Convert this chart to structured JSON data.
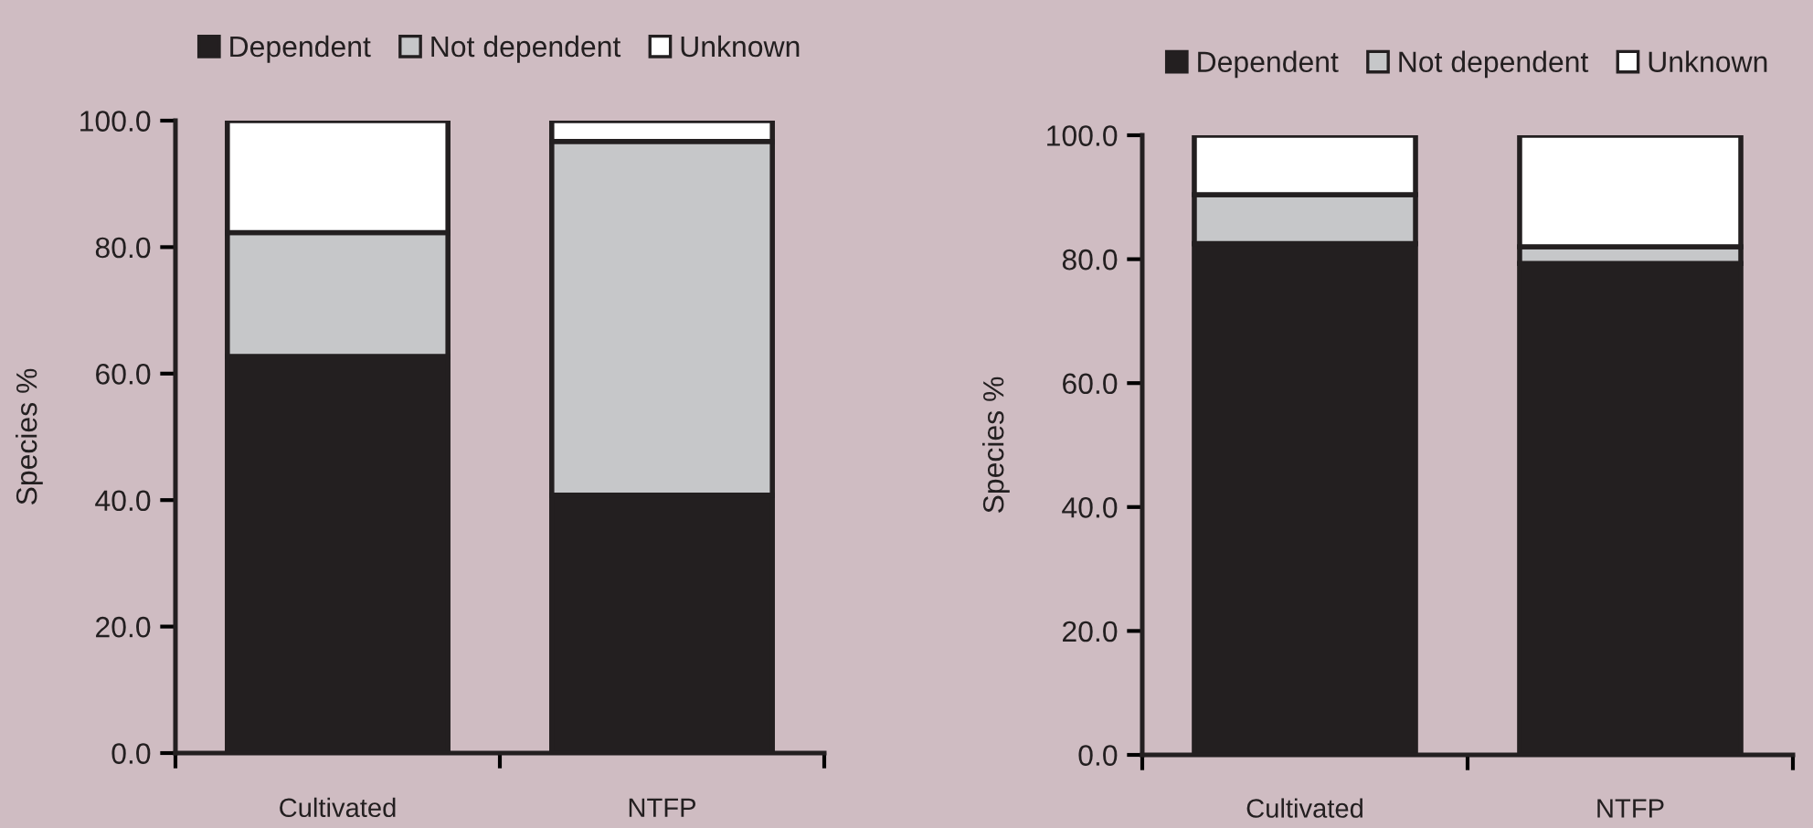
{
  "chart_data": [
    {
      "type": "bar",
      "stacked": true,
      "ylabel": "Species %",
      "categories": [
        "Cultivated",
        "NTFP"
      ],
      "ylim": [
        0,
        100
      ],
      "yticks": [
        {
          "value": 0,
          "label": "0.0"
        },
        {
          "value": 20,
          "label": "20.0"
        },
        {
          "value": 40,
          "label": "40.0"
        },
        {
          "value": 60,
          "label": "60.0"
        },
        {
          "value": 80,
          "label": "80.0"
        },
        {
          "value": 100,
          "label": "100.0"
        }
      ],
      "grid": false,
      "legend": "top",
      "series": [
        {
          "name": "Dependent",
          "color": "#231f20",
          "values": [
            62.7,
            40.8
          ]
        },
        {
          "name": "Not dependent",
          "color": "#c6c7c9",
          "values": [
            19.6,
            55.9
          ]
        },
        {
          "name": "Unknown",
          "color": "#ffffff",
          "values": [
            17.7,
            3.3
          ]
        }
      ]
    },
    {
      "type": "bar",
      "stacked": true,
      "ylabel": "Species %",
      "categories": [
        "Cultivated",
        "NTFP"
      ],
      "ylim": [
        0,
        100
      ],
      "yticks": [
        {
          "value": 0,
          "label": "0.0"
        },
        {
          "value": 20,
          "label": "20.0"
        },
        {
          "value": 40,
          "label": "40.0"
        },
        {
          "value": 60,
          "label": "60.0"
        },
        {
          "value": 80,
          "label": "80.0"
        },
        {
          "value": 100,
          "label": "100.0"
        }
      ],
      "grid": false,
      "legend": "top",
      "series": [
        {
          "name": "Dependent",
          "color": "#231f20",
          "values": [
            82.5,
            79.3
          ]
        },
        {
          "name": "Not dependent",
          "color": "#c6c7c9",
          "values": [
            7.9,
            2.7
          ]
        },
        {
          "name": "Unknown",
          "color": "#ffffff",
          "values": [
            9.6,
            18.0
          ]
        }
      ]
    }
  ]
}
